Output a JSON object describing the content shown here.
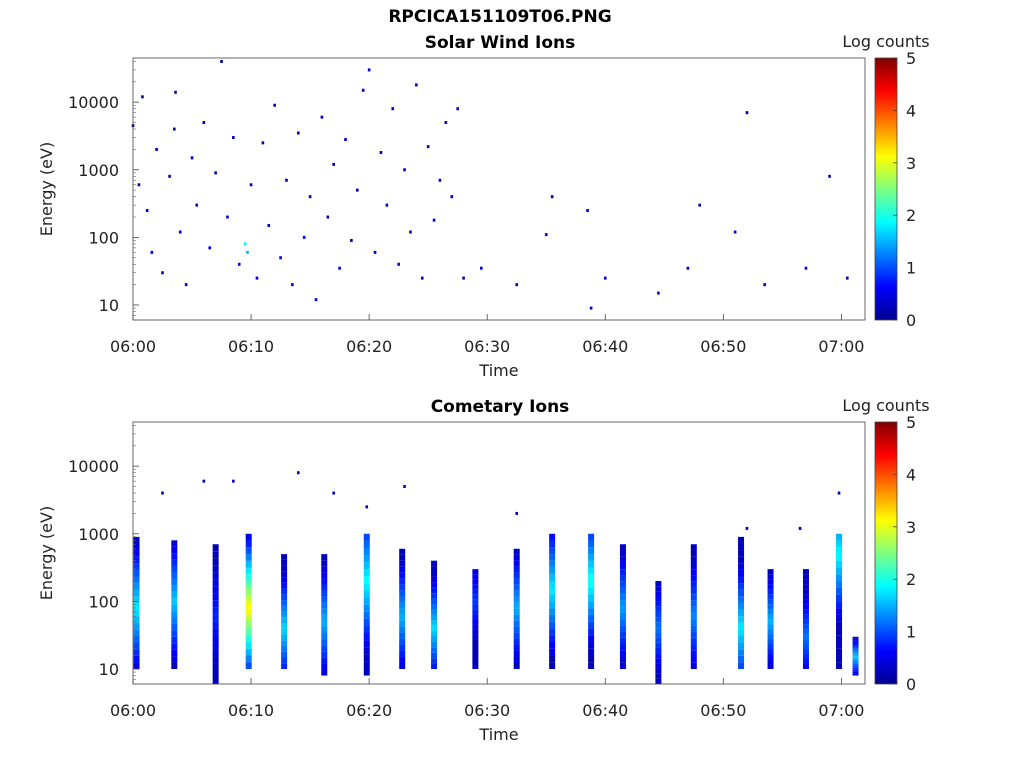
{
  "figure": {
    "title": "RPCICA151109T06.PNG"
  },
  "chart_data": [
    {
      "type": "heatmap",
      "title": "Solar Wind Ions",
      "xlabel": "Time",
      "ylabel": "Energy (eV)",
      "yscale": "log",
      "ylim": [
        6,
        45000
      ],
      "xlim": [
        "06:00",
        "07:02"
      ],
      "xticks": [
        "06:00",
        "06:10",
        "06:20",
        "06:30",
        "06:40",
        "06:50",
        "07:00"
      ],
      "yticks": [
        "10",
        "100",
        "1000",
        "10000"
      ],
      "colorbar": {
        "label": "Log counts",
        "range": [
          0,
          5
        ],
        "ticks": [
          "0",
          "1",
          "2",
          "3",
          "4",
          "5"
        ],
        "colormap": "jet"
      },
      "grid": false,
      "description_points": [
        {
          "t_min": 0.0,
          "e_ev": 4500,
          "log_counts": 0.3
        },
        {
          "t_min": 0.5,
          "e_ev": 600,
          "log_counts": 0.3
        },
        {
          "t_min": 0.8,
          "e_ev": 12000,
          "log_counts": 0.3
        },
        {
          "t_min": 1.2,
          "e_ev": 250,
          "log_counts": 0.4
        },
        {
          "t_min": 1.6,
          "e_ev": 60,
          "log_counts": 0.5
        },
        {
          "t_min": 2.0,
          "e_ev": 2000,
          "log_counts": 0.3
        },
        {
          "t_min": 2.5,
          "e_ev": 30,
          "log_counts": 0.4
        },
        {
          "t_min": 3.1,
          "e_ev": 800,
          "log_counts": 0.3
        },
        {
          "t_min": 3.5,
          "e_ev": 4000,
          "log_counts": 0.3
        },
        {
          "t_min": 3.6,
          "e_ev": 14000,
          "log_counts": 0.3
        },
        {
          "t_min": 4.0,
          "e_ev": 120,
          "log_counts": 0.4
        },
        {
          "t_min": 4.5,
          "e_ev": 20,
          "log_counts": 0.5
        },
        {
          "t_min": 5.0,
          "e_ev": 1500,
          "log_counts": 0.3
        },
        {
          "t_min": 5.4,
          "e_ev": 300,
          "log_counts": 0.3
        },
        {
          "t_min": 6.0,
          "e_ev": 5000,
          "log_counts": 0.3
        },
        {
          "t_min": 6.5,
          "e_ev": 70,
          "log_counts": 0.5
        },
        {
          "t_min": 7.0,
          "e_ev": 900,
          "log_counts": 0.3
        },
        {
          "t_min": 7.5,
          "e_ev": 40000,
          "log_counts": 0.3
        },
        {
          "t_min": 8.0,
          "e_ev": 200,
          "log_counts": 0.5
        },
        {
          "t_min": 8.5,
          "e_ev": 3000,
          "log_counts": 0.3
        },
        {
          "t_min": 9.0,
          "e_ev": 40,
          "log_counts": 0.6
        },
        {
          "t_min": 9.5,
          "e_ev": 80,
          "log_counts": 1.8
        },
        {
          "t_min": 9.7,
          "e_ev": 60,
          "log_counts": 1.5
        },
        {
          "t_min": 10.0,
          "e_ev": 600,
          "log_counts": 0.3
        },
        {
          "t_min": 10.5,
          "e_ev": 25,
          "log_counts": 0.6
        },
        {
          "t_min": 11.0,
          "e_ev": 2500,
          "log_counts": 0.3
        },
        {
          "t_min": 11.5,
          "e_ev": 150,
          "log_counts": 0.4
        },
        {
          "t_min": 12.0,
          "e_ev": 9000,
          "log_counts": 0.3
        },
        {
          "t_min": 12.5,
          "e_ev": 50,
          "log_counts": 0.5
        },
        {
          "t_min": 13.0,
          "e_ev": 700,
          "log_counts": 0.3
        },
        {
          "t_min": 13.5,
          "e_ev": 20,
          "log_counts": 0.5
        },
        {
          "t_min": 14.0,
          "e_ev": 3500,
          "log_counts": 0.3
        },
        {
          "t_min": 14.5,
          "e_ev": 100,
          "log_counts": 0.5
        },
        {
          "t_min": 15.0,
          "e_ev": 400,
          "log_counts": 0.3
        },
        {
          "t_min": 15.5,
          "e_ev": 12,
          "log_counts": 0.5
        },
        {
          "t_min": 16.0,
          "e_ev": 6000,
          "log_counts": 0.3
        },
        {
          "t_min": 16.5,
          "e_ev": 200,
          "log_counts": 0.4
        },
        {
          "t_min": 17.0,
          "e_ev": 1200,
          "log_counts": 0.3
        },
        {
          "t_min": 17.5,
          "e_ev": 35,
          "log_counts": 0.5
        },
        {
          "t_min": 18.0,
          "e_ev": 2800,
          "log_counts": 0.3
        },
        {
          "t_min": 18.5,
          "e_ev": 90,
          "log_counts": 0.4
        },
        {
          "t_min": 19.0,
          "e_ev": 500,
          "log_counts": 0.3
        },
        {
          "t_min": 19.5,
          "e_ev": 15000,
          "log_counts": 0.3
        },
        {
          "t_min": 20.0,
          "e_ev": 30000,
          "log_counts": 0.3
        },
        {
          "t_min": 20.5,
          "e_ev": 60,
          "log_counts": 0.5
        },
        {
          "t_min": 21.0,
          "e_ev": 1800,
          "log_counts": 0.3
        },
        {
          "t_min": 21.5,
          "e_ev": 300,
          "log_counts": 0.3
        },
        {
          "t_min": 22.0,
          "e_ev": 8000,
          "log_counts": 0.3
        },
        {
          "t_min": 22.5,
          "e_ev": 40,
          "log_counts": 0.5
        },
        {
          "t_min": 23.0,
          "e_ev": 1000,
          "log_counts": 0.3
        },
        {
          "t_min": 23.5,
          "e_ev": 120,
          "log_counts": 0.4
        },
        {
          "t_min": 24.0,
          "e_ev": 18000,
          "log_counts": 0.3
        },
        {
          "t_min": 24.5,
          "e_ev": 25,
          "log_counts": 0.5
        },
        {
          "t_min": 25.0,
          "e_ev": 2200,
          "log_counts": 0.3
        },
        {
          "t_min": 25.5,
          "e_ev": 180,
          "log_counts": 0.4
        },
        {
          "t_min": 26.0,
          "e_ev": 700,
          "log_counts": 0.3
        },
        {
          "t_min": 26.5,
          "e_ev": 5000,
          "log_counts": 0.3
        },
        {
          "t_min": 27.0,
          "e_ev": 400,
          "log_counts": 0.3
        },
        {
          "t_min": 27.5,
          "e_ev": 8000,
          "log_counts": 0.3
        },
        {
          "t_min": 28.0,
          "e_ev": 25,
          "log_counts": 0.4
        },
        {
          "t_min": 29.5,
          "e_ev": 35,
          "log_counts": 0.4
        },
        {
          "t_min": 32.5,
          "e_ev": 20,
          "log_counts": 0.4
        },
        {
          "t_min": 35.0,
          "e_ev": 110,
          "log_counts": 0.4
        },
        {
          "t_min": 35.5,
          "e_ev": 400,
          "log_counts": 0.3
        },
        {
          "t_min": 38.5,
          "e_ev": 250,
          "log_counts": 0.5
        },
        {
          "t_min": 38.8,
          "e_ev": 9,
          "log_counts": 0.5
        },
        {
          "t_min": 40.0,
          "e_ev": 25,
          "log_counts": 0.4
        },
        {
          "t_min": 44.5,
          "e_ev": 15,
          "log_counts": 0.4
        },
        {
          "t_min": 47.0,
          "e_ev": 35,
          "log_counts": 0.4
        },
        {
          "t_min": 48.0,
          "e_ev": 300,
          "log_counts": 0.3
        },
        {
          "t_min": 51.0,
          "e_ev": 120,
          "log_counts": 0.4
        },
        {
          "t_min": 52.0,
          "e_ev": 7000,
          "log_counts": 0.3
        },
        {
          "t_min": 53.5,
          "e_ev": 20,
          "log_counts": 0.4
        },
        {
          "t_min": 57.0,
          "e_ev": 35,
          "log_counts": 0.4
        },
        {
          "t_min": 59.0,
          "e_ev": 800,
          "log_counts": 0.3
        },
        {
          "t_min": 60.5,
          "e_ev": 25,
          "log_counts": 0.4
        }
      ]
    },
    {
      "type": "heatmap",
      "title": "Cometary Ions",
      "xlabel": "Time",
      "ylabel": "Energy (eV)",
      "yscale": "log",
      "ylim": [
        6,
        45000
      ],
      "xlim": [
        "06:00",
        "07:02"
      ],
      "xticks": [
        "06:00",
        "06:10",
        "06:20",
        "06:30",
        "06:40",
        "06:50",
        "07:00"
      ],
      "yticks": [
        "10",
        "100",
        "1000",
        "10000"
      ],
      "colorbar": {
        "label": "Log counts",
        "range": [
          0,
          5
        ],
        "ticks": [
          "0",
          "1",
          "2",
          "3",
          "4",
          "5"
        ],
        "colormap": "jet"
      },
      "grid": false,
      "bursts": [
        {
          "t_min": 0.3,
          "e_low": 10,
          "e_high": 900,
          "peak_log_counts": 1.8,
          "peak_e": 80
        },
        {
          "t_min": 3.5,
          "e_low": 10,
          "e_high": 800,
          "peak_log_counts": 1.6,
          "peak_e": 100
        },
        {
          "t_min": 7.0,
          "e_low": 6,
          "e_high": 700,
          "peak_log_counts": 0.8,
          "peak_e": 60
        },
        {
          "t_min": 9.8,
          "e_low": 10,
          "e_high": 1000,
          "peak_log_counts": 3.2,
          "peak_e": 80
        },
        {
          "t_min": 12.8,
          "e_low": 10,
          "e_high": 500,
          "peak_log_counts": 1.7,
          "peak_e": 40
        },
        {
          "t_min": 16.2,
          "e_low": 8,
          "e_high": 500,
          "peak_log_counts": 1.5,
          "peak_e": 50
        },
        {
          "t_min": 19.8,
          "e_low": 8,
          "e_high": 1000,
          "peak_log_counts": 1.9,
          "peak_e": 200
        },
        {
          "t_min": 22.8,
          "e_low": 10,
          "e_high": 600,
          "peak_log_counts": 1.5,
          "peak_e": 60
        },
        {
          "t_min": 25.5,
          "e_low": 10,
          "e_high": 400,
          "peak_log_counts": 1.7,
          "peak_e": 40
        },
        {
          "t_min": 29.0,
          "e_low": 10,
          "e_high": 300,
          "peak_log_counts": 0.9,
          "peak_e": 100
        },
        {
          "t_min": 32.5,
          "e_low": 10,
          "e_high": 600,
          "peak_log_counts": 1.5,
          "peak_e": 80
        },
        {
          "t_min": 35.5,
          "e_low": 10,
          "e_high": 1000,
          "peak_log_counts": 1.8,
          "peak_e": 150
        },
        {
          "t_min": 38.8,
          "e_low": 10,
          "e_high": 1000,
          "peak_log_counts": 2.0,
          "peak_e": 200
        },
        {
          "t_min": 41.5,
          "e_low": 10,
          "e_high": 700,
          "peak_log_counts": 1.4,
          "peak_e": 80
        },
        {
          "t_min": 44.5,
          "e_low": 6,
          "e_high": 200,
          "peak_log_counts": 1.2,
          "peak_e": 40
        },
        {
          "t_min": 47.5,
          "e_low": 10,
          "e_high": 700,
          "peak_log_counts": 1.3,
          "peak_e": 60
        },
        {
          "t_min": 51.5,
          "e_low": 10,
          "e_high": 900,
          "peak_log_counts": 1.8,
          "peak_e": 40
        },
        {
          "t_min": 54.0,
          "e_low": 10,
          "e_high": 300,
          "peak_log_counts": 1.5,
          "peak_e": 50
        },
        {
          "t_min": 57.0,
          "e_low": 10,
          "e_high": 300,
          "peak_log_counts": 1.2,
          "peak_e": 30
        },
        {
          "t_min": 59.8,
          "e_low": 10,
          "e_high": 1000,
          "peak_log_counts": 1.9,
          "peak_e": 500
        },
        {
          "t_min": 61.2,
          "e_low": 8,
          "e_high": 30,
          "peak_log_counts": 1.6,
          "peak_e": 15
        }
      ],
      "scattered_points": [
        {
          "t_min": 2.5,
          "e_ev": 4000,
          "log_counts": 0.3
        },
        {
          "t_min": 6.0,
          "e_ev": 6000,
          "log_counts": 0.3
        },
        {
          "t_min": 8.5,
          "e_ev": 6000,
          "log_counts": 0.3
        },
        {
          "t_min": 14.0,
          "e_ev": 8000,
          "log_counts": 0.3
        },
        {
          "t_min": 17.0,
          "e_ev": 4000,
          "log_counts": 0.3
        },
        {
          "t_min": 19.8,
          "e_ev": 2500,
          "log_counts": 0.3
        },
        {
          "t_min": 23.0,
          "e_ev": 5000,
          "log_counts": 0.3
        },
        {
          "t_min": 32.5,
          "e_ev": 2000,
          "log_counts": 0.3
        },
        {
          "t_min": 52.0,
          "e_ev": 1200,
          "log_counts": 0.3
        },
        {
          "t_min": 56.5,
          "e_ev": 1200,
          "log_counts": 0.3
        },
        {
          "t_min": 59.8,
          "e_ev": 4000,
          "log_counts": 0.3
        }
      ]
    }
  ]
}
